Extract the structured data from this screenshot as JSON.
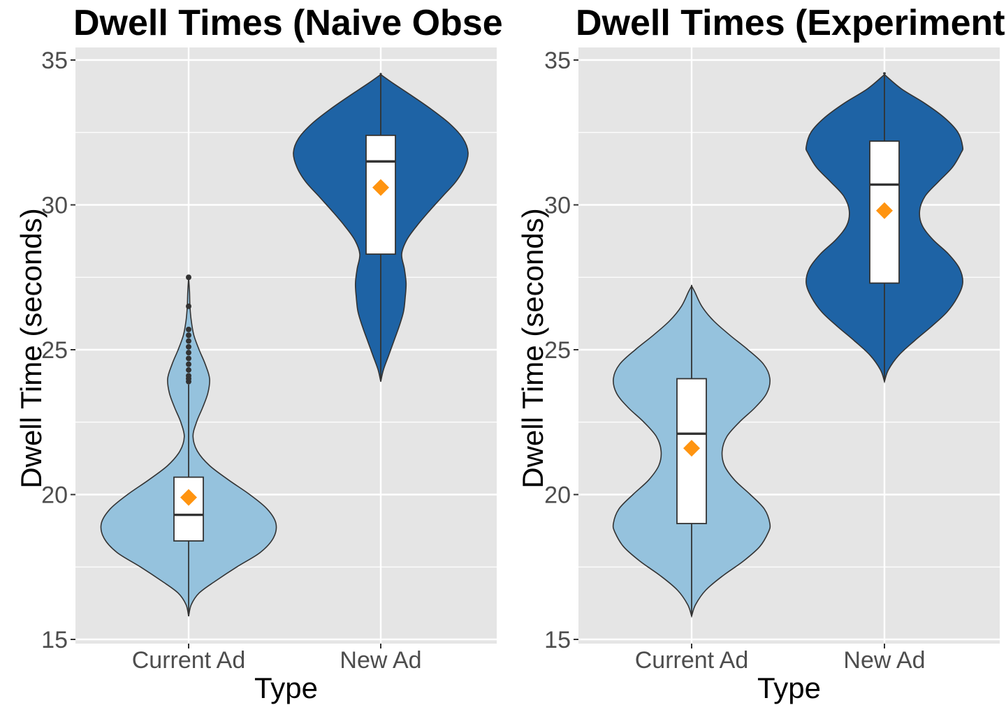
{
  "colors": {
    "panel_bg": "#e5e5e5",
    "grid": "#ffffff",
    "current_fill": "#95c2dd",
    "new_fill": "#1e63a5",
    "outline": "#333333",
    "box_fill": "#ffffff",
    "mean_marker": "#ff9410",
    "tick_text": "#4d4d4d"
  },
  "chart_data": [
    {
      "type": "violin",
      "title": "Dwell Times (Naive Observational)",
      "xlabel": "Type",
      "ylabel": "Dwell Time (seconds)",
      "ylim": [
        15,
        35
      ],
      "yticks": [
        15,
        20,
        25,
        30,
        35
      ],
      "grid": true,
      "categories": [
        "Current Ad",
        "New Ad"
      ],
      "groups": [
        {
          "name": "Current Ad",
          "fill": "#95c2dd",
          "violin_range": [
            15.8,
            27.5
          ],
          "density": [
            [
              15.8,
              0.0
            ],
            [
              16.2,
              0.03
            ],
            [
              16.6,
              0.12
            ],
            [
              17.0,
              0.3
            ],
            [
              17.5,
              0.55
            ],
            [
              18.0,
              0.82
            ],
            [
              18.5,
              0.97
            ],
            [
              19.0,
              1.0
            ],
            [
              19.5,
              0.9
            ],
            [
              20.0,
              0.7
            ],
            [
              20.5,
              0.46
            ],
            [
              21.0,
              0.24
            ],
            [
              21.5,
              0.1
            ],
            [
              22.0,
              0.05
            ],
            [
              22.5,
              0.09
            ],
            [
              23.0,
              0.16
            ],
            [
              23.5,
              0.22
            ],
            [
              24.0,
              0.24
            ],
            [
              24.5,
              0.19
            ],
            [
              25.0,
              0.12
            ],
            [
              25.5,
              0.06
            ],
            [
              26.0,
              0.03
            ],
            [
              26.5,
              0.015
            ],
            [
              27.0,
              0.01
            ],
            [
              27.5,
              0.0
            ]
          ],
          "box": {
            "q1": 18.4,
            "median": 19.3,
            "q3": 20.6,
            "whisker_low": 15.8,
            "whisker_high": 23.8
          },
          "mean": 19.9,
          "outliers": [
            23.9,
            24.0,
            24.1,
            24.3,
            24.5,
            24.7,
            24.9,
            25.1,
            25.3,
            25.5,
            25.7,
            26.5,
            27.5
          ]
        },
        {
          "name": "New Ad",
          "fill": "#1e63a5",
          "violin_range": [
            23.9,
            34.5
          ],
          "density": [
            [
              23.9,
              0.0
            ],
            [
              24.3,
              0.03
            ],
            [
              24.8,
              0.09
            ],
            [
              25.3,
              0.15
            ],
            [
              25.8,
              0.21
            ],
            [
              26.3,
              0.26
            ],
            [
              26.8,
              0.28
            ],
            [
              27.3,
              0.29
            ],
            [
              27.8,
              0.27
            ],
            [
              28.3,
              0.24
            ],
            [
              28.8,
              0.3
            ],
            [
              29.3,
              0.42
            ],
            [
              29.8,
              0.56
            ],
            [
              30.3,
              0.71
            ],
            [
              30.8,
              0.86
            ],
            [
              31.3,
              0.96
            ],
            [
              31.8,
              1.0
            ],
            [
              32.3,
              0.94
            ],
            [
              32.8,
              0.79
            ],
            [
              33.3,
              0.58
            ],
            [
              33.8,
              0.34
            ],
            [
              34.2,
              0.14
            ],
            [
              34.5,
              0.0
            ]
          ],
          "box": {
            "q1": 28.3,
            "median": 31.5,
            "q3": 32.4,
            "whisker_low": 23.9,
            "whisker_high": 34.5
          },
          "mean": 30.6,
          "outliers": []
        }
      ]
    },
    {
      "type": "violin",
      "title": "Dwell Times (Experimental)",
      "xlabel": "Type",
      "ylabel": "Dwell Time (seconds)",
      "ylim": [
        15,
        35
      ],
      "yticks": [
        15,
        20,
        25,
        30,
        35
      ],
      "grid": true,
      "categories": [
        "Current Ad",
        "New Ad"
      ],
      "groups": [
        {
          "name": "Current Ad",
          "fill": "#95c2dd",
          "violin_range": [
            15.8,
            27.2
          ],
          "density": [
            [
              15.8,
              0.0
            ],
            [
              16.2,
              0.05
            ],
            [
              16.7,
              0.18
            ],
            [
              17.2,
              0.4
            ],
            [
              17.7,
              0.66
            ],
            [
              18.2,
              0.87
            ],
            [
              18.7,
              0.98
            ],
            [
              19.0,
              1.0
            ],
            [
              19.5,
              0.93
            ],
            [
              20.0,
              0.75
            ],
            [
              20.5,
              0.55
            ],
            [
              21.0,
              0.42
            ],
            [
              21.5,
              0.39
            ],
            [
              22.0,
              0.45
            ],
            [
              22.5,
              0.61
            ],
            [
              23.0,
              0.81
            ],
            [
              23.5,
              0.96
            ],
            [
              24.0,
              1.0
            ],
            [
              24.5,
              0.92
            ],
            [
              25.0,
              0.72
            ],
            [
              25.5,
              0.49
            ],
            [
              26.0,
              0.28
            ],
            [
              26.5,
              0.13
            ],
            [
              27.0,
              0.04
            ],
            [
              27.2,
              0.0
            ]
          ],
          "box": {
            "q1": 19.0,
            "median": 22.1,
            "q3": 24.0,
            "whisker_low": 15.8,
            "whisker_high": 27.2
          },
          "mean": 21.6,
          "outliers": []
        },
        {
          "name": "New Ad",
          "fill": "#1e63a5",
          "violin_range": [
            23.9,
            34.5
          ],
          "density": [
            [
              23.9,
              0.0
            ],
            [
              24.3,
              0.05
            ],
            [
              24.8,
              0.18
            ],
            [
              25.3,
              0.38
            ],
            [
              25.8,
              0.6
            ],
            [
              26.3,
              0.8
            ],
            [
              26.8,
              0.93
            ],
            [
              27.3,
              1.0
            ],
            [
              27.8,
              0.96
            ],
            [
              28.3,
              0.82
            ],
            [
              28.8,
              0.62
            ],
            [
              29.3,
              0.48
            ],
            [
              29.8,
              0.45
            ],
            [
              30.3,
              0.52
            ],
            [
              30.8,
              0.69
            ],
            [
              31.3,
              0.87
            ],
            [
              31.8,
              0.98
            ],
            [
              32.0,
              1.0
            ],
            [
              32.5,
              0.94
            ],
            [
              33.0,
              0.77
            ],
            [
              33.5,
              0.52
            ],
            [
              34.0,
              0.22
            ],
            [
              34.5,
              0.0
            ]
          ],
          "box": {
            "q1": 27.3,
            "median": 30.7,
            "q3": 32.2,
            "whisker_low": 23.9,
            "whisker_high": 34.5
          },
          "mean": 29.8,
          "outliers": []
        }
      ]
    }
  ]
}
